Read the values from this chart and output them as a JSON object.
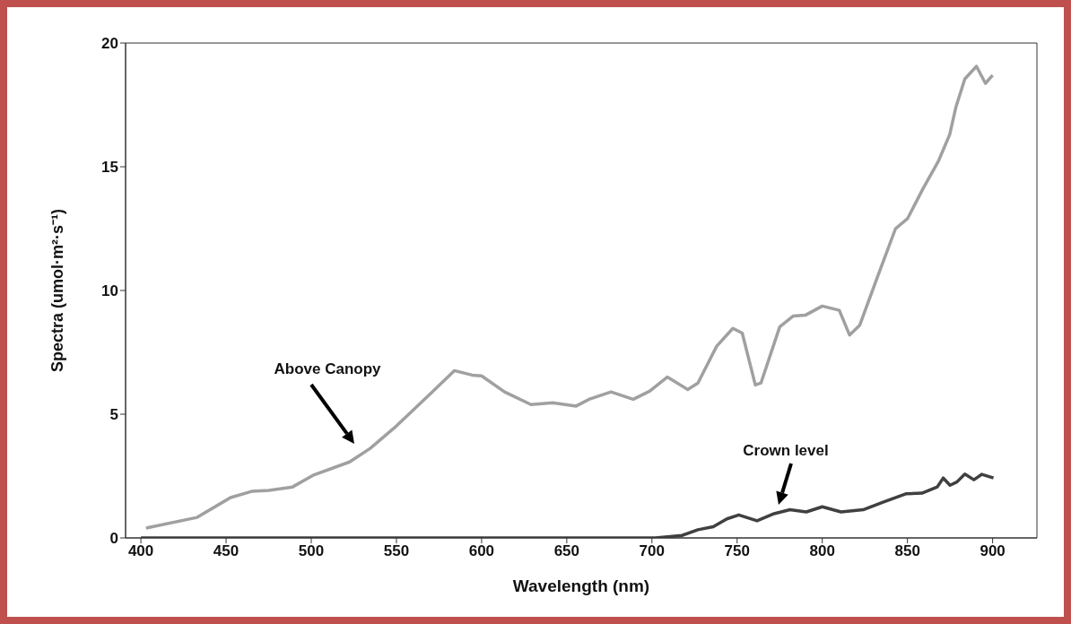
{
  "chart_data": {
    "type": "line",
    "xlabel": "Wavelength (nm)",
    "ylabel": "Spectra (umol·m²·s⁻¹)",
    "xlim": [
      391,
      926
    ],
    "xticks": [
      400,
      450,
      500,
      550,
      600,
      650,
      700,
      750,
      800,
      850,
      900
    ],
    "ylim": [
      0,
      20
    ],
    "yticks": [
      0,
      5,
      10,
      15,
      20
    ],
    "marker": "none",
    "line_style": "solid",
    "series": [
      {
        "color": "#a0a0a0",
        "x": [
          403,
          433,
          452.6,
          465,
          475,
          489,
          501,
          522.5,
          534.6,
          548.8,
          571,
          584,
          594.5,
          600,
          613.5,
          629,
          641.8,
          655.5,
          663,
          676,
          689,
          698.6,
          709,
          721,
          727,
          738,
          747.5,
          753,
          760.7,
          764,
          775,
          783,
          790,
          800,
          810,
          816,
          822,
          832.7,
          843,
          850,
          859,
          868,
          874.8,
          878.4,
          883.7,
          890.5,
          895.8,
          900
        ],
        "values": [
          0.4,
          0.83,
          1.63,
          1.88,
          1.92,
          2.06,
          2.53,
          3.07,
          3.62,
          4.45,
          5.9,
          6.76,
          6.58,
          6.55,
          5.9,
          5.39,
          5.46,
          5.33,
          5.6,
          5.9,
          5.6,
          5.93,
          6.5,
          6.0,
          6.26,
          7.75,
          8.47,
          8.28,
          6.18,
          6.26,
          8.53,
          8.97,
          9.0,
          9.37,
          9.2,
          8.2,
          8.6,
          10.6,
          12.5,
          12.9,
          14.1,
          15.2,
          16.3,
          17.4,
          18.55,
          19.06,
          18.37,
          18.7
        ]
      },
      {
        "color": "#404040",
        "x": [
          400,
          702,
          717.6,
          727,
          736,
          744,
          751,
          761.7,
          771.7,
          781,
          790.6,
          800,
          811,
          824,
          836,
          849,
          858.5,
          867.5,
          871,
          875,
          879,
          883.7,
          889,
          893.7,
          900.5
        ],
        "values": [
          0,
          0,
          0.1,
          0.33,
          0.45,
          0.77,
          0.93,
          0.69,
          0.98,
          1.14,
          1.05,
          1.26,
          1.05,
          1.14,
          1.45,
          1.78,
          1.81,
          2.06,
          2.42,
          2.13,
          2.26,
          2.58,
          2.35,
          2.57,
          2.42
        ]
      }
    ],
    "annotations": [
      "Above Canopy",
      "Crown level"
    ]
  }
}
